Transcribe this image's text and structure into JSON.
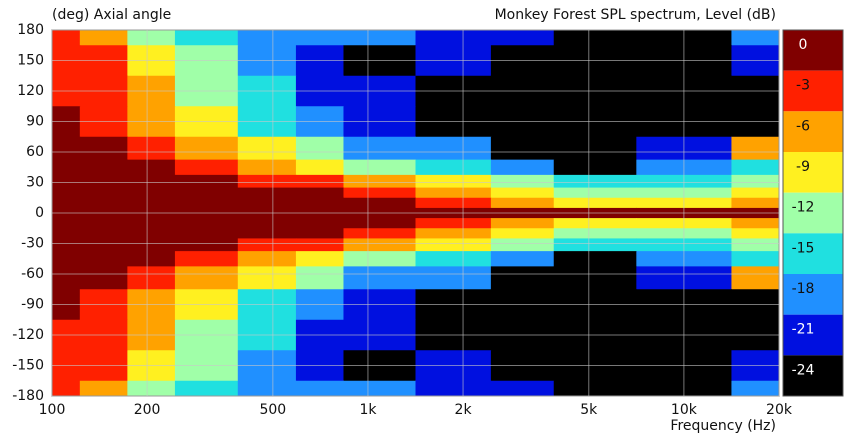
{
  "chart_data": {
    "type": "heatmap",
    "title": "Monkey Forest SPL spectrum, Level  (dB)",
    "y_label": "(deg)  Axial angle",
    "x_label": "Frequency  (Hz)",
    "log_x": true,
    "xlim": [
      100,
      20000
    ],
    "xticks": [
      100,
      200,
      500,
      {
        "value": 1000,
        "label": "1k"
      },
      {
        "value": 2000,
        "label": "2k"
      },
      {
        "value": 5000,
        "label": "5k"
      },
      {
        "value": 10000,
        "label": "10k"
      },
      {
        "value": 20000,
        "label": "20k"
      }
    ],
    "ylim": [
      -180,
      180
    ],
    "yticks": [
      180,
      150,
      120,
      90,
      60,
      30,
      0,
      -30,
      -60,
      -90,
      -120,
      -150,
      -180
    ],
    "grid": true,
    "x": [
      100,
      150,
      200,
      300,
      500,
      700,
      1000,
      2000,
      3000,
      5000,
      10000,
      20000
    ],
    "y": [
      180,
      150,
      120,
      90,
      60,
      45,
      30,
      20,
      10,
      0,
      -10,
      -20,
      -30,
      -45,
      -60,
      -90,
      -120,
      -150,
      -180
    ],
    "z": [
      [
        -4,
        -6,
        -12,
        -15,
        -18,
        -20,
        -19,
        -22,
        -22,
        -25,
        -26,
        -20
      ],
      [
        -4,
        -5,
        -10,
        -14,
        -18,
        -21,
        -24,
        -22,
        -25,
        -26,
        -26,
        -22
      ],
      [
        -3,
        -4,
        -8,
        -12,
        -17,
        -22,
        -22,
        -25,
        -24,
        -26,
        -25,
        -24
      ],
      [
        -2,
        -3,
        -6,
        -10,
        -16,
        -20,
        -22,
        -25,
        -25,
        -25,
        -26,
        -24
      ],
      [
        -2,
        -2,
        -4,
        -7,
        -11,
        -14,
        -18,
        -20,
        -24,
        -24,
        -22,
        -6
      ],
      [
        -1,
        -1,
        -2,
        -4,
        -7,
        -10,
        -12,
        -16,
        -20,
        -24,
        -20,
        -15
      ],
      [
        0,
        0,
        0,
        -1,
        -3,
        -5,
        -7,
        -11,
        -14,
        -17,
        -16,
        -12
      ],
      [
        0,
        0,
        0,
        0,
        -1,
        -2,
        -4,
        -8,
        -10,
        -13,
        -14,
        -10
      ],
      [
        0,
        0,
        0,
        0,
        0,
        0,
        -1,
        -4,
        -6,
        -9,
        -10,
        -8
      ],
      [
        0,
        0,
        0,
        0,
        0,
        0,
        0,
        0,
        0,
        0,
        0,
        0
      ],
      [
        0,
        0,
        0,
        0,
        0,
        0,
        -1,
        -4,
        -6,
        -9,
        -10,
        -8
      ],
      [
        0,
        0,
        0,
        0,
        -1,
        -2,
        -4,
        -8,
        -10,
        -13,
        -14,
        -10
      ],
      [
        0,
        0,
        0,
        -1,
        -3,
        -5,
        -7,
        -11,
        -14,
        -17,
        -16,
        -12
      ],
      [
        -1,
        -1,
        -2,
        -4,
        -7,
        -10,
        -12,
        -16,
        -20,
        -24,
        -20,
        -15
      ],
      [
        -2,
        -2,
        -4,
        -7,
        -11,
        -14,
        -18,
        -20,
        -24,
        -24,
        -22,
        -6
      ],
      [
        -2,
        -3,
        -6,
        -10,
        -16,
        -20,
        -22,
        -25,
        -25,
        -25,
        -26,
        -24
      ],
      [
        -3,
        -4,
        -8,
        -12,
        -17,
        -22,
        -22,
        -25,
        -24,
        -26,
        -25,
        -24
      ],
      [
        -4,
        -5,
        -10,
        -14,
        -18,
        -21,
        -24,
        -22,
        -25,
        -26,
        -26,
        -22
      ],
      [
        -4,
        -6,
        -12,
        -15,
        -18,
        -20,
        -19,
        -22,
        -22,
        -25,
        -26,
        -20
      ]
    ],
    "colorbar": {
      "ticks": [
        0,
        -3,
        -6,
        -9,
        -12,
        -15,
        -18,
        -21,
        -24
      ],
      "colors": [
        "#800000",
        "#ff2000",
        "#ffa200",
        "#fff020",
        "#a0ffa8",
        "#20e0e0",
        "#2090ff",
        "#0010e0",
        "#000000"
      ]
    }
  }
}
